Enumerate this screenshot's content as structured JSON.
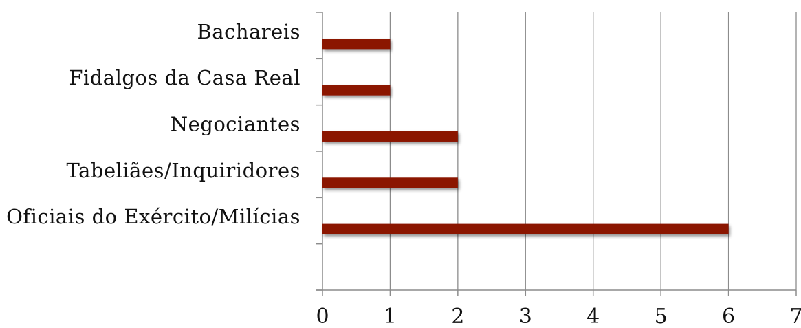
{
  "chart_data": {
    "type": "bar",
    "orientation": "horizontal",
    "categories": [
      "Bachareis",
      "Fidalgos da Casa Real",
      "Negociantes",
      "Tabeliães/Inquiridores",
      "Oficiais do Exército/Milícias"
    ],
    "values": [
      1,
      1,
      2,
      2,
      6
    ],
    "title": "",
    "xlabel": "",
    "ylabel": "",
    "xlim": [
      0,
      7
    ],
    "xticks": [
      "0",
      "1",
      "2",
      "3",
      "4",
      "5",
      "6",
      "7"
    ],
    "grid": "vertical",
    "legend": "none",
    "bar_color": "#8b1206",
    "grid_color": "#8c8c8c"
  }
}
